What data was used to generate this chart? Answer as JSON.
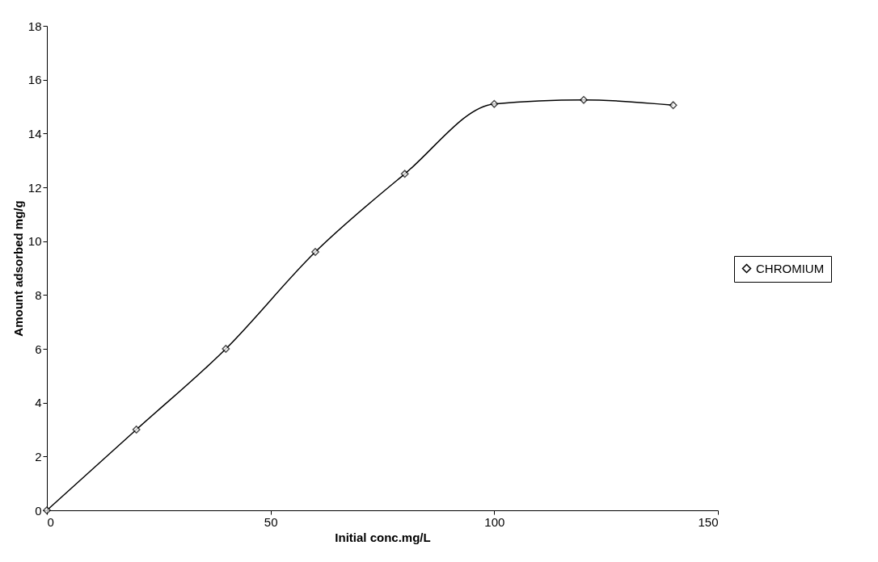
{
  "chart_data": {
    "type": "line",
    "xlabel": "Initial conc.mg/L",
    "ylabel": "Amount adsorbed mg/g",
    "x": [
      0,
      20,
      40,
      60,
      80,
      100,
      120,
      140
    ],
    "series": [
      {
        "name": "CHROMIUM",
        "color": "#000000",
        "values": [
          0,
          3,
          6,
          9.6,
          12.5,
          15.1,
          15.25,
          15.05
        ]
      }
    ],
    "xlim": [
      0,
      150
    ],
    "xticks": [
      0,
      50,
      100,
      150
    ],
    "ylim": [
      0,
      18
    ],
    "yticks": [
      0,
      2,
      4,
      6,
      8,
      10,
      12,
      14,
      16,
      18
    ],
    "grid": false,
    "legend": "right",
    "marker": "diamond",
    "line_style": "solid"
  }
}
